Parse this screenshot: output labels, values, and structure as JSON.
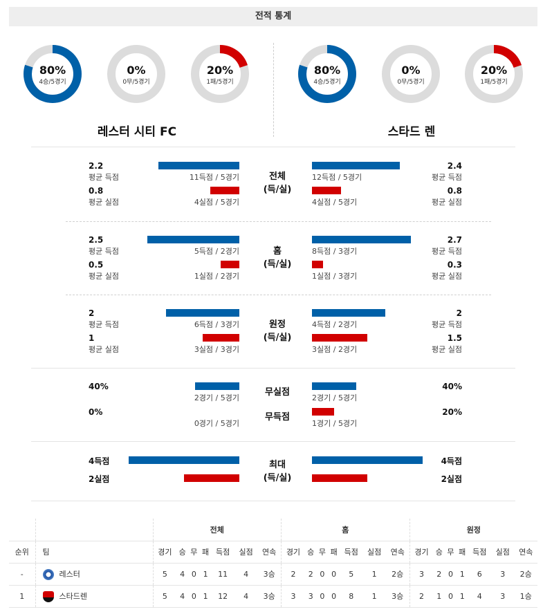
{
  "header": {
    "title": "전적 통계"
  },
  "colors": {
    "win": "#0060a8",
    "loss": "#d10000",
    "track": "#dcdcdc"
  },
  "teams": {
    "home": {
      "name": "레스터 시티 FC",
      "short": "레스터",
      "crest": "leicester-crest-icon"
    },
    "away": {
      "name": "스타드 렌",
      "short": "스타드렌",
      "crest": "rennes-crest-icon"
    }
  },
  "donuts": {
    "home": [
      {
        "pct": "80%",
        "sub": "4승/5경기",
        "fraction": 0.8,
        "kind": "win"
      },
      {
        "pct": "0%",
        "sub": "0무/5경기",
        "fraction": 0,
        "kind": "draw"
      },
      {
        "pct": "20%",
        "sub": "1패/5경기",
        "fraction": 0.2,
        "kind": "loss"
      }
    ],
    "away": [
      {
        "pct": "80%",
        "sub": "4승/5경기",
        "fraction": 0.8,
        "kind": "win"
      },
      {
        "pct": "0%",
        "sub": "0무/5경기",
        "fraction": 0,
        "kind": "draw"
      },
      {
        "pct": "20%",
        "sub": "1패/5경기",
        "fraction": 0.2,
        "kind": "loss"
      }
    ]
  },
  "sections": {
    "total": {
      "title1": "전체",
      "title2": "(득/실)",
      "home": {
        "scored": "2.2",
        "scored_label": "평균 득점",
        "scored_cap": "11득점 / 5경기",
        "conceded": "0.8",
        "conceded_label": "평균 실점",
        "conceded_cap": "4실점 / 5경기"
      },
      "away": {
        "scored": "2.4",
        "scored_label": "평균 득점",
        "scored_cap": "12득점 / 5경기",
        "conceded": "0.8",
        "conceded_label": "평균 실점",
        "conceded_cap": "4실점 / 5경기"
      }
    },
    "home_games": {
      "title1": "홈",
      "title2": "(득/실)",
      "home": {
        "scored": "2.5",
        "scored_label": "평균 득점",
        "scored_cap": "5득점 / 2경기",
        "conceded": "0.5",
        "conceded_label": "평균 실점",
        "conceded_cap": "1실점 / 2경기"
      },
      "away": {
        "scored": "2.7",
        "scored_label": "평균 득점",
        "scored_cap": "8득점 / 3경기",
        "conceded": "0.3",
        "conceded_label": "평균 실점",
        "conceded_cap": "1실점 / 3경기"
      }
    },
    "away_games": {
      "title1": "원정",
      "title2": "(득/실)",
      "home": {
        "scored": "2",
        "scored_label": "평균 득점",
        "scored_cap": "6득점 / 3경기",
        "conceded": "1",
        "conceded_label": "평균 실점",
        "conceded_cap": "3실점 / 3경기"
      },
      "away": {
        "scored": "2",
        "scored_label": "평균 득점",
        "scored_cap": "4득점 / 2경기",
        "conceded": "1.5",
        "conceded_label": "평균 실점",
        "conceded_cap": "3실점 / 2경기"
      }
    },
    "clean": {
      "title_clean": "무실점",
      "title_noscore": "무득점",
      "home": {
        "clean": "40%",
        "clean_cap": "2경기 / 5경기",
        "noscore": "0%",
        "noscore_cap": "0경기 / 5경기"
      },
      "away": {
        "clean": "40%",
        "clean_cap": "2경기 / 5경기",
        "noscore": "20%",
        "noscore_cap": "1경기 / 5경기"
      }
    },
    "max": {
      "title1": "최대",
      "title2": "(득/실)",
      "home": {
        "scored": "4득점",
        "conceded": "2실점"
      },
      "away": {
        "scored": "4득점",
        "conceded": "2실점"
      }
    }
  },
  "table": {
    "groups": [
      "전체",
      "홈",
      "원정"
    ],
    "headers": {
      "rank": "순위",
      "team": "팀",
      "cols": [
        "경기",
        "승",
        "무",
        "패",
        "득점",
        "실점",
        "연속"
      ]
    },
    "rows": [
      {
        "rank": "-",
        "team": "레스터",
        "total": [
          "5",
          "4",
          "0",
          "1",
          "11",
          "4",
          "3승"
        ],
        "home": [
          "2",
          "2",
          "0",
          "0",
          "5",
          "1",
          "2승"
        ],
        "away": [
          "3",
          "2",
          "0",
          "1",
          "6",
          "3",
          "2승"
        ]
      },
      {
        "rank": "1",
        "team": "스타드렌",
        "total": [
          "5",
          "4",
          "0",
          "1",
          "12",
          "4",
          "3승"
        ],
        "home": [
          "3",
          "3",
          "0",
          "0",
          "8",
          "1",
          "3승"
        ],
        "away": [
          "2",
          "1",
          "0",
          "1",
          "4",
          "3",
          "1승"
        ]
      }
    ]
  }
}
